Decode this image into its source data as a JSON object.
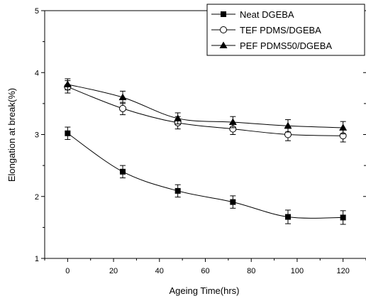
{
  "chart_data": {
    "type": "line",
    "xlabel": "Ageing Time(hrs)",
    "ylabel": "Elongation at break(%)",
    "xlim": [
      -10,
      130
    ],
    "ylim": [
      1,
      5
    ],
    "xticks": [
      0,
      20,
      40,
      60,
      80,
      100,
      120
    ],
    "yticks": [
      1,
      2,
      3,
      4,
      5
    ],
    "grid": false,
    "legend_position": "top-right",
    "x": [
      0,
      24,
      48,
      72,
      96,
      120
    ],
    "series": [
      {
        "name": "Neat DGEBA",
        "marker": "filled-square",
        "values": [
          3.02,
          2.4,
          2.09,
          1.91,
          1.67,
          1.66
        ],
        "errors": [
          0.1,
          0.1,
          0.1,
          0.1,
          0.11,
          0.11
        ]
      },
      {
        "name": "TEF PDMS/DGEBA",
        "marker": "open-circle",
        "values": [
          3.77,
          3.42,
          3.19,
          3.09,
          3.0,
          2.98
        ],
        "errors": [
          0.1,
          0.1,
          0.1,
          0.09,
          0.1,
          0.1
        ]
      },
      {
        "name": "PEF PDMS50/DGEBA",
        "marker": "filled-triangle",
        "values": [
          3.81,
          3.6,
          3.26,
          3.2,
          3.14,
          3.11
        ],
        "errors": [
          0.09,
          0.1,
          0.09,
          0.09,
          0.1,
          0.1
        ]
      }
    ],
    "colors": {
      "line": "#000000",
      "background": "#ffffff"
    }
  }
}
